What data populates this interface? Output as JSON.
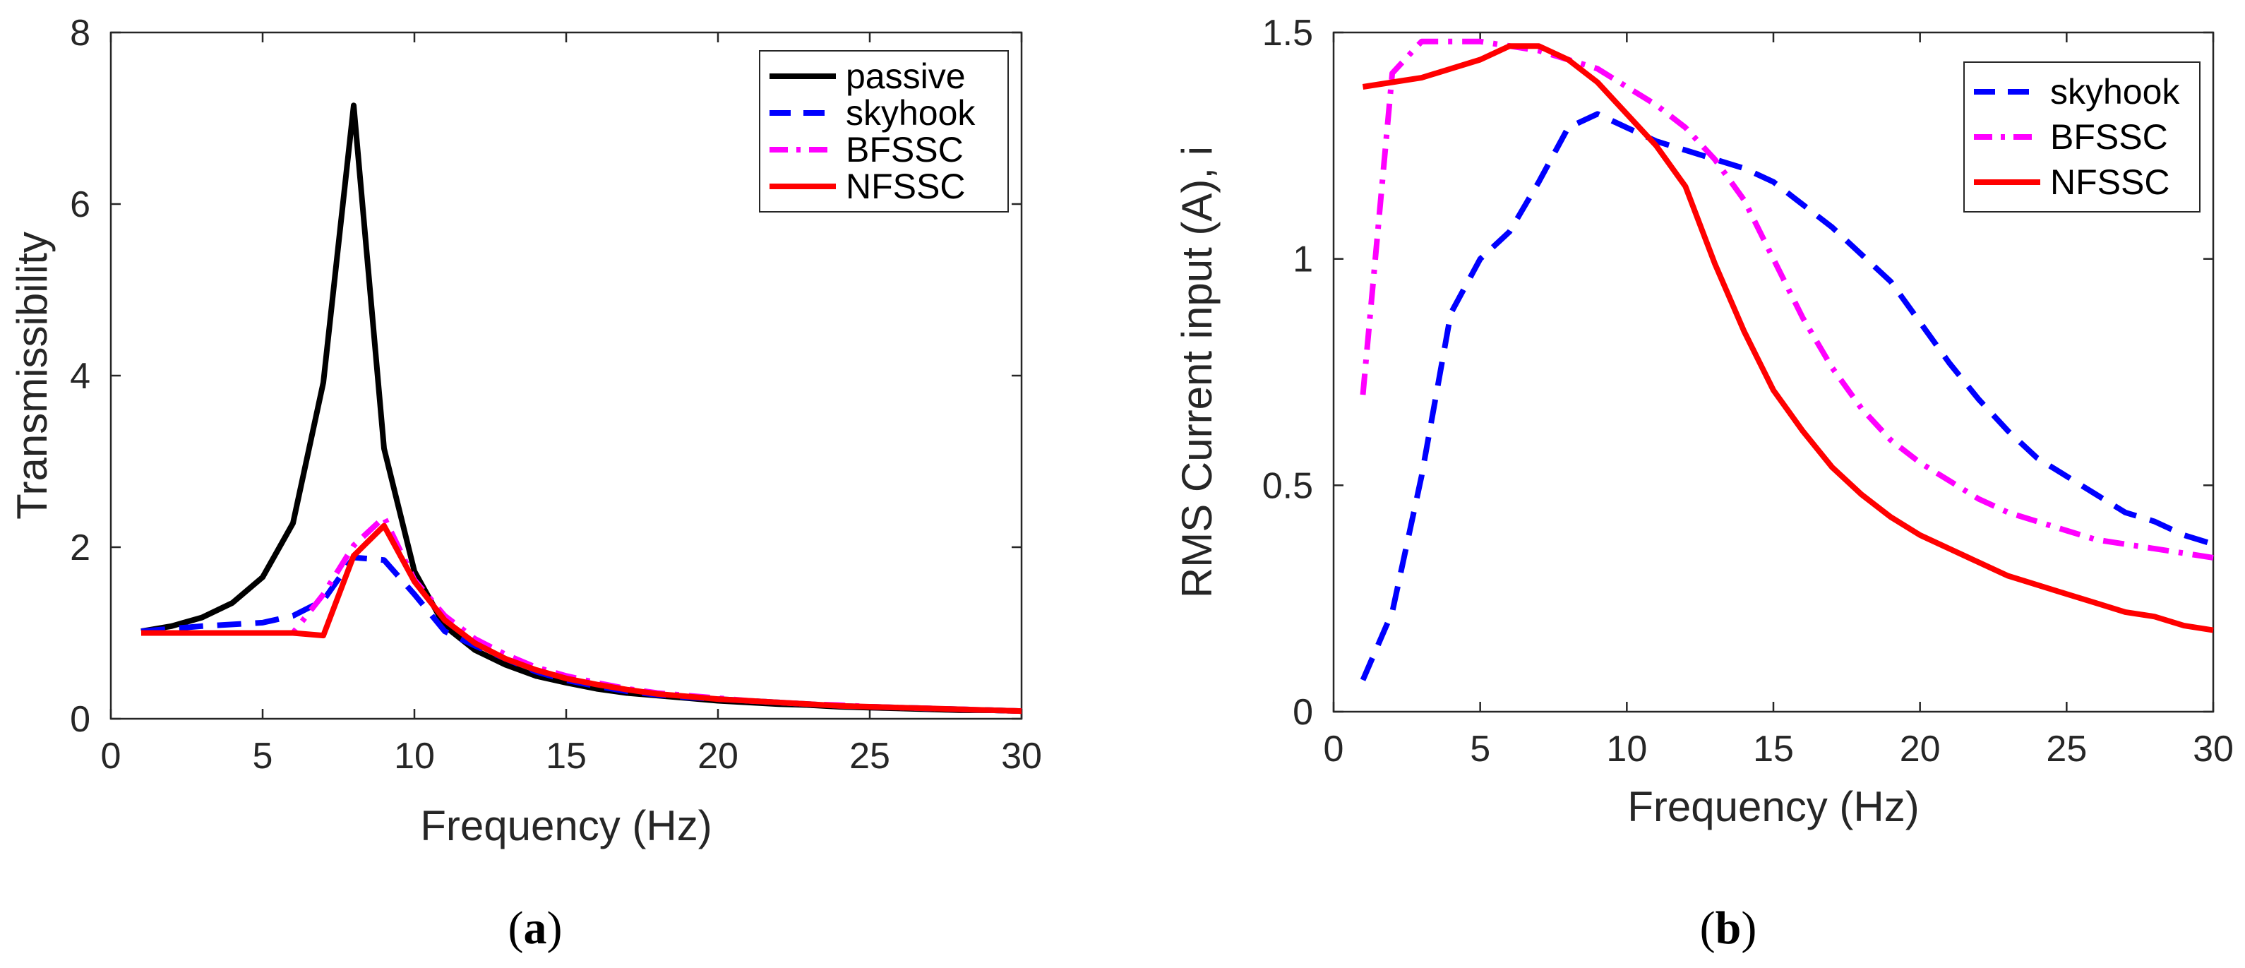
{
  "chart_data": [
    {
      "type": "line",
      "panel": "a",
      "caption": {
        "open": "(",
        "letter": "a",
        "close": ")"
      },
      "title": "",
      "xlabel": "Frequency (Hz)",
      "ylabel": "Transmissibility",
      "xlim": [
        0,
        30
      ],
      "ylim": [
        0,
        8
      ],
      "xticks": [
        0,
        5,
        10,
        15,
        20,
        25,
        30
      ],
      "yticks": [
        0,
        2,
        4,
        6,
        8
      ],
      "grid": false,
      "legend_position": "top-right",
      "x": [
        1,
        2,
        3,
        4,
        5,
        6,
        7,
        8,
        9,
        10,
        11,
        12,
        13,
        14,
        15,
        16,
        17,
        18,
        19,
        20,
        21,
        22,
        23,
        24,
        25,
        26,
        27,
        28,
        29,
        30
      ],
      "series": [
        {
          "name": "passive",
          "color": "#000000",
          "style": "solid",
          "values": [
            1.02,
            1.08,
            1.18,
            1.35,
            1.65,
            2.28,
            3.92,
            7.15,
            3.15,
            1.72,
            1.08,
            0.8,
            0.63,
            0.5,
            0.42,
            0.35,
            0.3,
            0.27,
            0.24,
            0.21,
            0.19,
            0.17,
            0.16,
            0.14,
            0.13,
            0.12,
            0.11,
            0.1,
            0.1,
            0.09
          ]
        },
        {
          "name": "skyhook",
          "color": "#0000ff",
          "style": "dash",
          "values": [
            1.02,
            1.05,
            1.08,
            1.1,
            1.12,
            1.2,
            1.38,
            1.88,
            1.85,
            1.45,
            1.02,
            0.85,
            0.7,
            0.55,
            0.45,
            0.38,
            0.32,
            0.28,
            0.25,
            0.23,
            0.21,
            0.19,
            0.17,
            0.15,
            0.14,
            0.13,
            0.12,
            0.11,
            0.1,
            0.09
          ]
        },
        {
          "name": "BFSSC",
          "color": "#ff00ff",
          "style": "dashdot",
          "values": [
            1.0,
            1.0,
            1.0,
            1.0,
            1.0,
            1.0,
            1.45,
            2.02,
            2.35,
            1.62,
            1.2,
            0.93,
            0.75,
            0.6,
            0.5,
            0.42,
            0.35,
            0.3,
            0.27,
            0.24,
            0.21,
            0.19,
            0.17,
            0.16,
            0.14,
            0.13,
            0.12,
            0.11,
            0.1,
            0.09
          ]
        },
        {
          "name": "NFSSC",
          "color": "#ff0000",
          "style": "solid",
          "values": [
            1.0,
            1.0,
            1.0,
            1.0,
            1.0,
            1.0,
            0.97,
            1.9,
            2.25,
            1.6,
            1.15,
            0.88,
            0.7,
            0.57,
            0.47,
            0.4,
            0.34,
            0.29,
            0.26,
            0.23,
            0.21,
            0.19,
            0.17,
            0.15,
            0.14,
            0.13,
            0.12,
            0.11,
            0.1,
            0.09
          ]
        }
      ]
    },
    {
      "type": "line",
      "panel": "b",
      "caption": {
        "open": "(",
        "letter": "b",
        "close": ")"
      },
      "title": "",
      "xlabel": "Frequency (Hz)",
      "ylabel": "RMS Current input (A), i",
      "xlim": [
        0,
        30
      ],
      "ylim": [
        0,
        1.5
      ],
      "xticks": [
        0,
        5,
        10,
        15,
        20,
        25,
        30
      ],
      "yticks": [
        0,
        0.5,
        1,
        1.5
      ],
      "ytick_labels": [
        "0",
        "0.5",
        "1",
        "1.5"
      ],
      "grid": false,
      "legend_position": "top-right",
      "x": [
        1,
        2,
        3,
        4,
        5,
        6,
        7,
        8,
        9,
        10,
        11,
        12,
        13,
        14,
        15,
        16,
        17,
        18,
        19,
        20,
        21,
        22,
        23,
        24,
        25,
        26,
        27,
        28,
        29,
        30
      ],
      "series": [
        {
          "name": "skyhook",
          "color": "#0000ff",
          "style": "dash",
          "values": [
            0.07,
            0.22,
            0.52,
            0.88,
            1.0,
            1.06,
            1.17,
            1.29,
            1.32,
            1.29,
            1.26,
            1.24,
            1.22,
            1.2,
            1.17,
            1.12,
            1.07,
            1.01,
            0.95,
            0.86,
            0.77,
            0.69,
            0.62,
            0.56,
            0.52,
            0.48,
            0.44,
            0.42,
            0.39,
            0.37
          ]
        },
        {
          "name": "BFSSC",
          "color": "#ff00ff",
          "style": "dashdot",
          "values": [
            0.7,
            1.41,
            1.48,
            1.48,
            1.48,
            1.47,
            1.46,
            1.44,
            1.42,
            1.38,
            1.34,
            1.29,
            1.22,
            1.13,
            1.0,
            0.87,
            0.76,
            0.67,
            0.6,
            0.55,
            0.51,
            0.47,
            0.44,
            0.42,
            0.4,
            0.38,
            0.37,
            0.36,
            0.35,
            0.34
          ]
        },
        {
          "name": "NFSSC",
          "color": "#ff0000",
          "style": "solid",
          "values": [
            1.38,
            1.39,
            1.4,
            1.42,
            1.44,
            1.47,
            1.47,
            1.44,
            1.39,
            1.32,
            1.25,
            1.16,
            0.99,
            0.84,
            0.71,
            0.62,
            0.54,
            0.48,
            0.43,
            0.39,
            0.36,
            0.33,
            0.3,
            0.28,
            0.26,
            0.24,
            0.22,
            0.21,
            0.19,
            0.18
          ]
        }
      ]
    }
  ]
}
